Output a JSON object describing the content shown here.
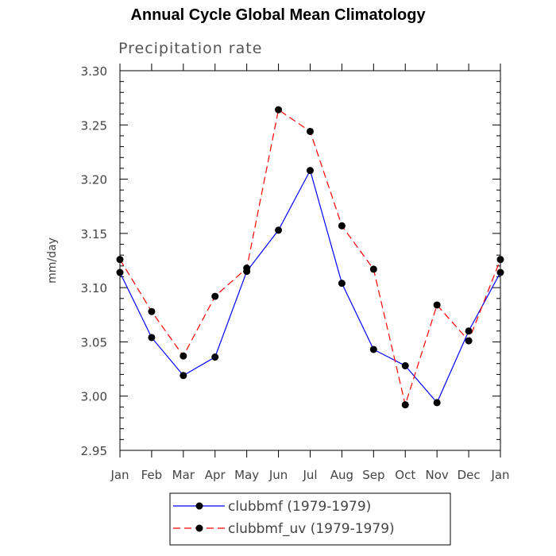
{
  "chart_data": {
    "type": "line",
    "title": "Annual Cycle Global Mean Climatology",
    "subtitle": "Precipitation rate",
    "xlabel": "",
    "ylabel": "mm/day",
    "categories": [
      "Jan",
      "Feb",
      "Mar",
      "Apr",
      "May",
      "Jun",
      "Jul",
      "Aug",
      "Sep",
      "Oct",
      "Nov",
      "Dec",
      "Jan"
    ],
    "ylim": [
      2.95,
      3.3
    ],
    "yticks": [
      "2.95",
      "3.00",
      "3.05",
      "3.10",
      "3.15",
      "3.20",
      "3.25",
      "3.30"
    ],
    "grid": false,
    "legend_position": "bottom",
    "series": [
      {
        "name": "clubbmf (1979-1979)",
        "color": "#0000ff",
        "dash": "solid",
        "values": [
          3.114,
          3.054,
          3.019,
          3.036,
          3.115,
          3.153,
          3.208,
          3.104,
          3.043,
          3.028,
          2.994,
          3.06,
          3.114
        ]
      },
      {
        "name": "clubbmf_uv (1979-1979)",
        "color": "#ff0000",
        "dash": "dashed",
        "values": [
          3.126,
          3.078,
          3.037,
          3.092,
          3.118,
          3.264,
          3.244,
          3.157,
          3.117,
          2.992,
          3.084,
          3.051,
          3.126
        ]
      }
    ]
  }
}
